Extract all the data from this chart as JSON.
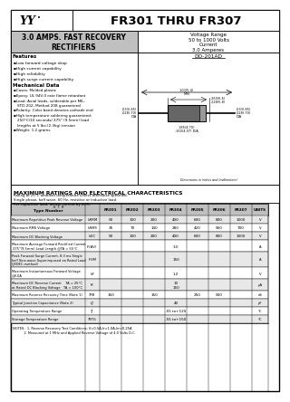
{
  "title": "FR301 THRU FR307",
  "subtitle": "3.0 AMPS. FAST RECOVERY\nRECTIFIERS",
  "voltage_range": "Voltage Range\n50 to 1000 Volts\nCurrent\n3.0 Amperes",
  "package": "DO-201AD",
  "features": [
    "Low forward voltage drop",
    "High current capability",
    "High reliability",
    "High surge current capability"
  ],
  "mechanical_data": [
    "Cases: Molded plastic",
    "Epoxy: UL 94V-0 rate flame retardant",
    "Lead: Axial leads, solderable per MIL-",
    "    STD-202, Method 208 guaranteed",
    "Polarity: Color band denotes cathode end",
    "High temperature soldering guaranteed:",
    "    250°C/10 seconds/.375\" (9.5mm) lead",
    "    lengths at 5 lbs.(2.3kg) tension",
    "Weight: 1.2 grams"
  ],
  "ratings_title": "MAXIMUM RATINGS AND ELECTRICAL CHARACTERISTICS",
  "ratings_note": "Rating at 25°C ambient temperature unless otherwise specified.\nSingle phase, half wave, 60 Hz, resistive or inductive load.\nFor capacitive load, derate current by 20%.",
  "rows": [
    {
      "param": "Maximum Repetitive Peak Reverse Voltage",
      "symbol": "VRRM",
      "values": [
        "50",
        "100",
        "200",
        "400",
        "600",
        "800",
        "1000"
      ],
      "center": false,
      "unit": "V"
    },
    {
      "param": "Maximum RMS Voltage",
      "symbol": "VRMS",
      "values": [
        "35",
        "70",
        "140",
        "280",
        "420",
        "560",
        "700"
      ],
      "center": false,
      "unit": "V"
    },
    {
      "param": "Maximum DC Blocking Voltage",
      "symbol": "VDC",
      "values": [
        "50",
        "100",
        "200",
        "400",
        "600",
        "800",
        "1000"
      ],
      "center": false,
      "unit": "V"
    },
    {
      "param": "Maximum Average Forward Rectified Current\n.375\"(9.5mm) Lead Length @TA = 55°C",
      "symbol": "IF(AV)",
      "values": [
        "",
        "",
        "",
        "3.0",
        "",
        "",
        ""
      ],
      "center": true,
      "unit": "A"
    },
    {
      "param": "Peak Forward Surge Current, 8.3 ms Single\nhalf Sine-wave Superimposed on Rated Load\n(JEDEC method)",
      "symbol": "IFSM",
      "values": [
        "",
        "",
        "",
        "150",
        "",
        "",
        ""
      ],
      "center": true,
      "unit": "A"
    },
    {
      "param": "Maximum Instantaneous Forward Voltage\n@3.0A",
      "symbol": "VF",
      "values": [
        "",
        "",
        "",
        "1.2",
        "",
        "",
        ""
      ],
      "center": true,
      "unit": "V"
    },
    {
      "param": "Maximum DC Reverse Current    TA = 25°C\nat Rated DC Blocking Voltage   TA = 100°C",
      "symbol": "IR",
      "values": [
        "",
        "",
        "",
        "10",
        "",
        "",
        ""
      ],
      "values2": [
        "",
        "",
        "",
        "150",
        "",
        "",
        ""
      ],
      "center": true,
      "unit": "μA"
    },
    {
      "param": "Maximum Reverse Recovery Time (Note 1)",
      "symbol": "TRR",
      "values": [
        "150",
        "",
        "150",
        "",
        "250",
        "500",
        ""
      ],
      "center": false,
      "unit": "nS"
    },
    {
      "param": "Typical Junction Capacitance (Note 2)",
      "symbol": "CJ",
      "values": [
        "",
        "",
        "",
        "40",
        "",
        "",
        ""
      ],
      "center": true,
      "unit": "pF"
    },
    {
      "param": "Operating Temperature Range",
      "symbol": "TJ",
      "values": [
        "",
        "",
        "",
        "-55 to+125",
        "",
        "",
        ""
      ],
      "center": true,
      "unit": "°C"
    },
    {
      "param": "Storage Temperature Range",
      "symbol": "TSTG",
      "values": [
        "",
        "",
        "",
        "-55 to+150",
        "",
        "",
        ""
      ],
      "center": true,
      "unit": "°C"
    }
  ],
  "notes": [
    "NOTES:  1. Reverse Recovery Test Conditions: If=0.5A,Ir=1.0A,Irr=0.25A",
    "           2. Measured at 1 MHz and Applied Reverse Voltage of 4.0 Volts D.C."
  ],
  "bg_header": "#c0c0c0",
  "bg_row_alt": "#e8e8e8",
  "bg_white": "#ffffff"
}
